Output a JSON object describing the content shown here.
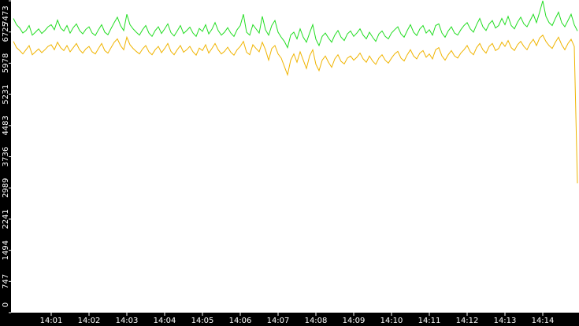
{
  "chart_data": {
    "type": "line",
    "categories": [
      null,
      null,
      null,
      null,
      null,
      null,
      null,
      null,
      null,
      null,
      null,
      null,
      "14:01",
      null,
      null,
      null,
      null,
      null,
      null,
      null,
      null,
      null,
      null,
      null,
      "14:02",
      null,
      null,
      null,
      null,
      null,
      null,
      null,
      null,
      null,
      null,
      null,
      "14:03",
      null,
      null,
      null,
      null,
      null,
      null,
      null,
      null,
      null,
      null,
      null,
      "14:04",
      null,
      null,
      null,
      null,
      null,
      null,
      null,
      null,
      null,
      null,
      null,
      "14:05",
      null,
      null,
      null,
      null,
      null,
      null,
      null,
      null,
      null,
      null,
      null,
      "14:06",
      null,
      null,
      null,
      null,
      null,
      null,
      null,
      null,
      null,
      null,
      null,
      "14:07",
      null,
      null,
      null,
      null,
      null,
      null,
      null,
      null,
      null,
      null,
      null,
      "14:08",
      null,
      null,
      null,
      null,
      null,
      null,
      null,
      null,
      null,
      null,
      null,
      "14:09",
      null,
      null,
      null,
      null,
      null,
      null,
      null,
      null,
      null,
      null,
      null,
      "14:10",
      null,
      null,
      null,
      null,
      null,
      null,
      null,
      null,
      null,
      null,
      null,
      "14:11",
      null,
      null,
      null,
      null,
      null,
      null,
      null,
      null,
      null,
      null,
      null,
      "14:12",
      null,
      null,
      null,
      null,
      null,
      null,
      null,
      null,
      null,
      null,
      null,
      "14:13",
      null,
      null,
      null,
      null,
      null,
      null,
      null,
      null,
      null,
      null,
      null,
      "14:14",
      null,
      null,
      null,
      null,
      null,
      null,
      null,
      null,
      null,
      null,
      null
    ],
    "series": [
      {
        "color": "#22dd22",
        "values": [
          7050,
          6900,
          6820,
          6700,
          6760,
          6880,
          6650,
          6720,
          6800,
          6690,
          6760,
          6850,
          6900,
          6780,
          7010,
          6820,
          6750,
          6880,
          6700,
          6830,
          6920,
          6760,
          6680,
          6790,
          6850,
          6700,
          6640,
          6780,
          6900,
          6720,
          6660,
          6810,
          6950,
          7080,
          6880,
          6760,
          7150,
          6900,
          6800,
          6720,
          6650,
          6780,
          6880,
          6700,
          6620,
          6760,
          6850,
          6690,
          6800,
          6920,
          6710,
          6630,
          6750,
          6880,
          6690,
          6760,
          6840,
          6700,
          6620,
          6810,
          6740,
          6900,
          6680,
          6790,
          6950,
          6760,
          6650,
          6720,
          6830,
          6700,
          6620,
          6780,
          6880,
          7150,
          6720,
          6650,
          6900,
          6800,
          6700,
          7100,
          6780,
          6650,
          6880,
          7000,
          6720,
          6600,
          6500,
          6350,
          6650,
          6720,
          6560,
          6800,
          6600,
          6480,
          6700,
          6900,
          6550,
          6400,
          6620,
          6700,
          6580,
          6480,
          6650,
          6760,
          6600,
          6520,
          6680,
          6750,
          6620,
          6700,
          6800,
          6650,
          6560,
          6720,
          6600,
          6500,
          6680,
          6750,
          6620,
          6560,
          6700,
          6780,
          6850,
          6680,
          6600,
          6760,
          6900,
          6720,
          6640,
          6800,
          6880,
          6700,
          6780,
          6650,
          6880,
          6920,
          6700,
          6600,
          6750,
          6850,
          6700,
          6650,
          6780,
          6880,
          6950,
          6800,
          6720,
          6900,
          7050,
          6850,
          6760,
          6920,
          7000,
          6820,
          6880,
          7050,
          6900,
          7100,
          6880,
          6800,
          6960,
          7080,
          6920,
          6850,
          7000,
          7150,
          6950,
          7200,
          7473,
          7100,
          6950,
          6880,
          7050,
          7200,
          6950,
          6850,
          7000,
          7150,
          6900,
          6750
        ]
      },
      {
        "color": "#f0b400",
        "values": [
          6500,
          6350,
          6280,
          6200,
          6300,
          6400,
          6180,
          6250,
          6320,
          6230,
          6300,
          6380,
          6420,
          6300,
          6480,
          6350,
          6280,
          6400,
          6250,
          6350,
          6450,
          6300,
          6220,
          6320,
          6380,
          6250,
          6200,
          6330,
          6450,
          6280,
          6220,
          6350,
          6480,
          6560,
          6400,
          6300,
          6600,
          6420,
          6330,
          6260,
          6200,
          6320,
          6400,
          6250,
          6180,
          6300,
          6380,
          6230,
          6330,
          6450,
          6260,
          6180,
          6300,
          6400,
          6240,
          6300,
          6380,
          6250,
          6170,
          6340,
          6280,
          6420,
          6220,
          6330,
          6450,
          6300,
          6200,
          6260,
          6360,
          6240,
          6170,
          6300,
          6380,
          6500,
          6240,
          6180,
          6420,
          6330,
          6250,
          6480,
          6300,
          6050,
          6330,
          6400,
          6200,
          6100,
          5900,
          5700,
          6050,
          6200,
          6000,
          6250,
          6050,
          5850,
          6150,
          6300,
          5950,
          5800,
          6050,
          6150,
          6000,
          5880,
          6080,
          6180,
          6020,
          5960,
          6100,
          6150,
          6050,
          6120,
          6220,
          6080,
          6000,
          6150,
          6030,
          5950,
          6100,
          6180,
          6050,
          5980,
          6100,
          6200,
          6260,
          6100,
          6030,
          6180,
          6300,
          6150,
          6080,
          6220,
          6280,
          6120,
          6200,
          6080,
          6300,
          6350,
          6150,
          6050,
          6180,
          6280,
          6150,
          6100,
          6220,
          6300,
          6400,
          6250,
          6180,
          6350,
          6450,
          6300,
          6220,
          6380,
          6450,
          6280,
          6330,
          6480,
          6380,
          6520,
          6350,
          6280,
          6420,
          6500,
          6380,
          6300,
          6450,
          6550,
          6400,
          6580,
          6650,
          6500,
          6400,
          6330,
          6480,
          6600,
          6420,
          6300,
          6450,
          6550,
          6380,
          3100
        ]
      }
    ],
    "ylim": [
      0,
      7473
    ],
    "yticks": [
      0,
      747,
      1494,
      2241,
      2989,
      3736,
      4483,
      5231,
      5978,
      6725,
      7473
    ],
    "grid": false
  }
}
